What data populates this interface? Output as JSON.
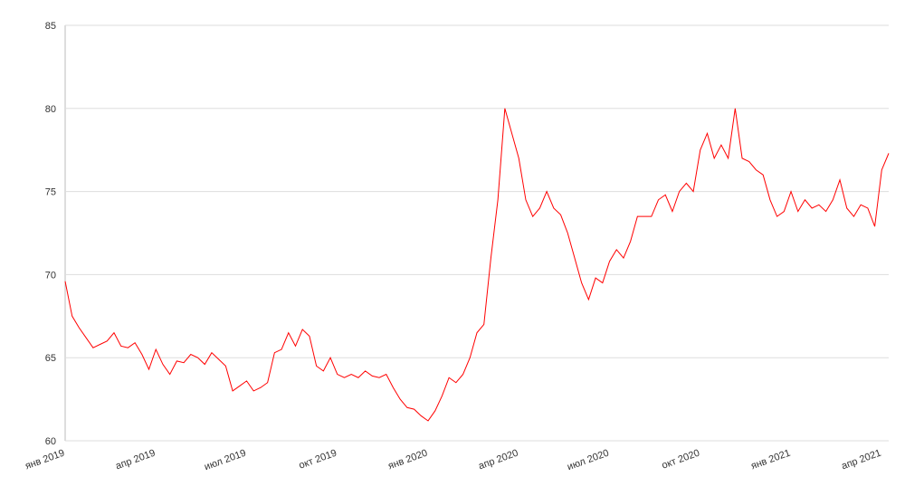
{
  "chart_data": {
    "type": "line",
    "categories": [
      "янв 2019",
      null,
      null,
      null,
      null,
      null,
      null,
      null,
      null,
      null,
      null,
      null,
      null,
      "апр 2019",
      null,
      null,
      null,
      null,
      null,
      null,
      null,
      null,
      null,
      null,
      null,
      null,
      "июл 2019",
      null,
      null,
      null,
      null,
      null,
      null,
      null,
      null,
      null,
      null,
      null,
      null,
      "окт 2019",
      null,
      null,
      null,
      null,
      null,
      null,
      null,
      null,
      null,
      null,
      null,
      null,
      "янв 2020",
      null,
      null,
      null,
      null,
      null,
      null,
      null,
      null,
      null,
      null,
      null,
      null,
      "апр 2020",
      null,
      null,
      null,
      null,
      null,
      null,
      null,
      null,
      null,
      null,
      null,
      null,
      "июл 2020",
      null,
      null,
      null,
      null,
      null,
      null,
      null,
      null,
      null,
      null,
      null,
      null,
      "окт 2020",
      null,
      null,
      null,
      null,
      null,
      null,
      null,
      null,
      null,
      null,
      null,
      null,
      "янв 2021",
      null,
      null,
      null,
      null,
      null,
      null,
      null,
      null,
      null,
      null,
      null,
      null,
      "апр 2021",
      null
    ],
    "series": [
      {
        "color": "#ff0000",
        "values": [
          69.6,
          67.5,
          66.8,
          66.2,
          65.6,
          65.8,
          66.0,
          66.5,
          65.7,
          65.6,
          65.9,
          65.2,
          64.3,
          65.5,
          64.6,
          64.0,
          64.8,
          64.7,
          65.2,
          65.0,
          64.6,
          65.3,
          64.9,
          64.5,
          63.0,
          63.3,
          63.6,
          63.0,
          63.2,
          63.5,
          65.3,
          65.5,
          66.5,
          65.7,
          66.7,
          66.3,
          64.5,
          64.2,
          65.0,
          64.0,
          63.8,
          64.0,
          63.8,
          64.2,
          63.9,
          63.8,
          64.0,
          63.2,
          62.5,
          62.0,
          61.9,
          61.5,
          61.2,
          61.8,
          62.7,
          63.8,
          63.5,
          64.0,
          65.0,
          66.5,
          67.0,
          71.0,
          74.5,
          80.0,
          78.5,
          77.0,
          74.5,
          73.5,
          74.0,
          75.0,
          74.0,
          73.6,
          72.5,
          71.0,
          69.5,
          68.5,
          69.8,
          69.5,
          70.8,
          71.5,
          71.0,
          72.0,
          73.5,
          73.5,
          73.5,
          74.5,
          74.8,
          73.8,
          75.0,
          75.5,
          75.0,
          77.5,
          78.5,
          77.0,
          77.8,
          77.0,
          80.0,
          77.0,
          76.8,
          76.3,
          76.0,
          74.5,
          73.5,
          73.8,
          75.0,
          73.8,
          74.5,
          74.0,
          74.2,
          73.8,
          74.5,
          75.7,
          74.0,
          73.5,
          74.2,
          74.0,
          72.9,
          76.3,
          77.3
        ]
      }
    ],
    "ylim": [
      60,
      85
    ],
    "yticks": [
      60,
      65,
      70,
      75,
      80,
      85
    ],
    "grid": true
  }
}
